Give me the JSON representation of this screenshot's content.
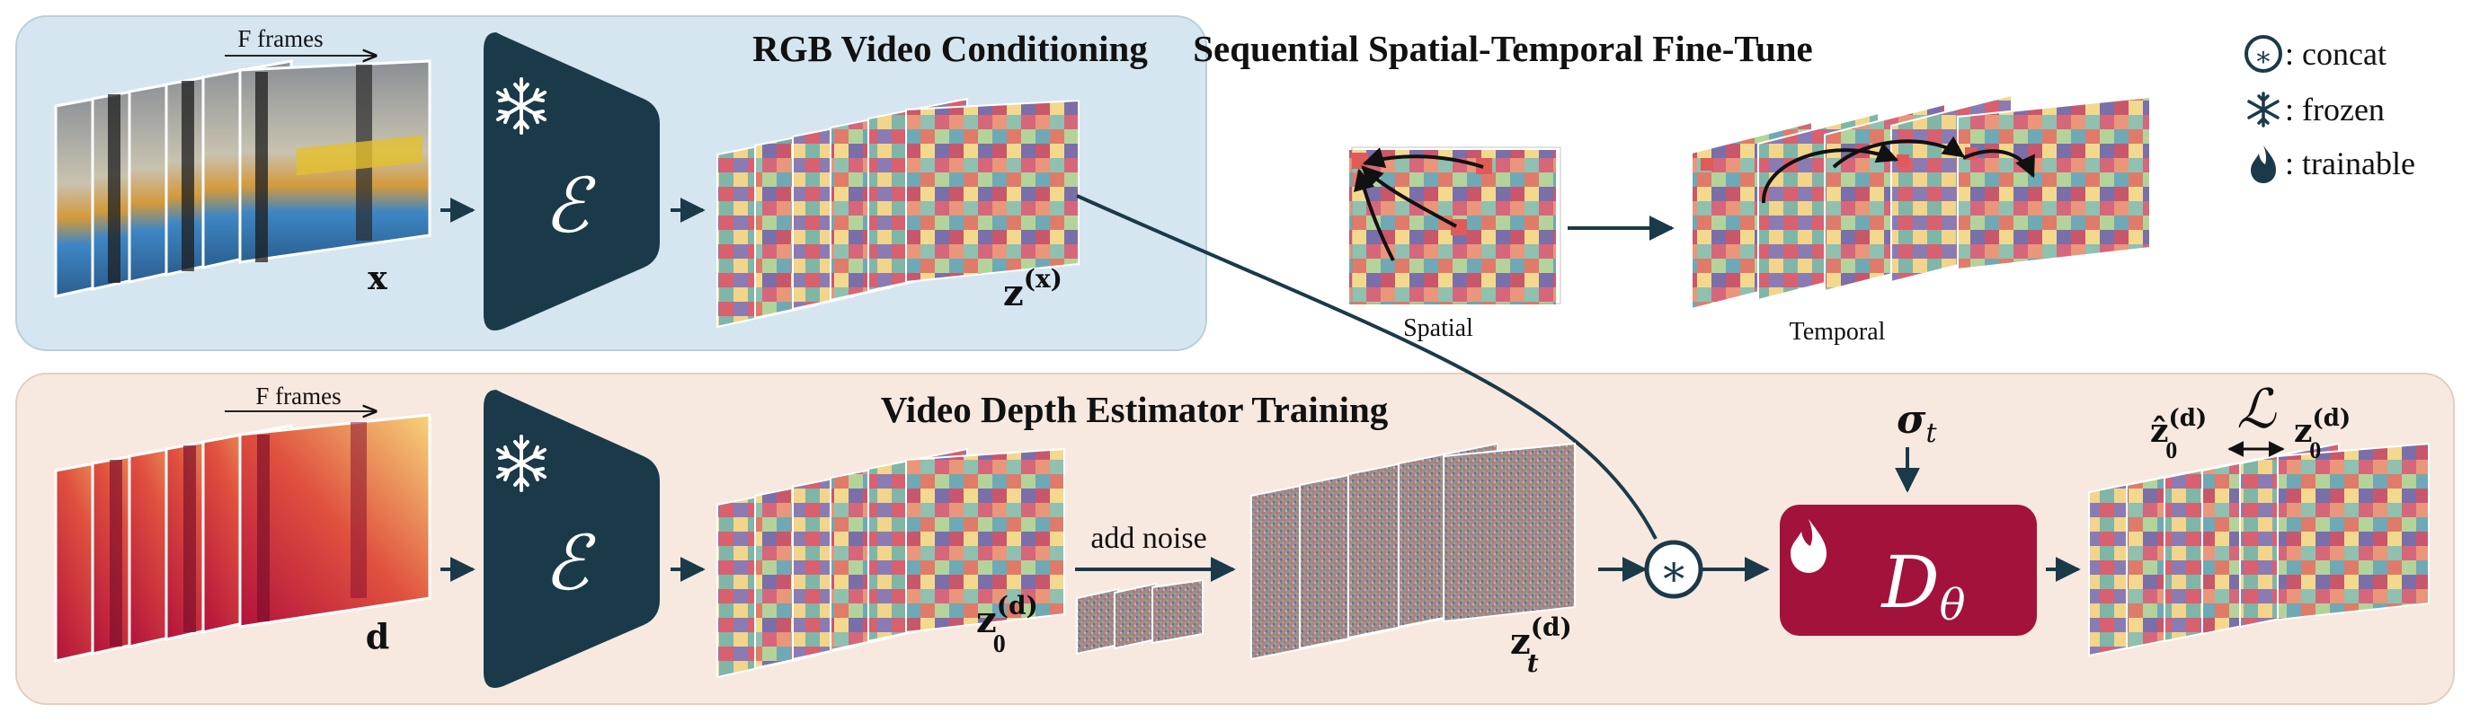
{
  "top_panel": {
    "title": "RGB Video Conditioning",
    "frames_label": "F frames",
    "input_symbol": "x",
    "encoder_symbol": "ℰ",
    "latent_base": "z",
    "latent_sup": "(x)"
  },
  "bottom_panel": {
    "title": "Video Depth Estimator Training",
    "frames_label": "F frames",
    "input_symbol": "d",
    "encoder_symbol": "ℰ",
    "clean_latent_base": "z",
    "clean_latent_sub": "0",
    "clean_latent_sup": "(d)",
    "noise_label": "add noise",
    "noisy_latent_base": "z",
    "noisy_latent_sub": "t",
    "noisy_latent_sup": "(d)",
    "concat_symbol": "∗",
    "sigma_base": "σ",
    "sigma_sub": "t",
    "denoiser_base": "D",
    "denoiser_sub": "θ",
    "loss_symbol": "ℒ",
    "pred_base": "ẑ",
    "pred_sub": "0",
    "pred_sup": "(d)",
    "target_base": "z",
    "target_sub": "0",
    "target_sup": "(d)"
  },
  "finetune": {
    "title": "Sequential Spatial-Temporal Fine-Tune",
    "spatial_label": "Spatial",
    "temporal_label": "Temporal"
  },
  "legend": {
    "concat_symbol": "∗",
    "concat_label": ": concat",
    "frozen_label": ": frozen",
    "trainable_label": ": trainable"
  },
  "colors": {
    "encoder": "#1a3a4a",
    "denoiser": "#a3123a",
    "top_panel_bg": "#d6e6f0",
    "bottom_panel_bg": "#f7e9df",
    "arrow": "#1a3a4a"
  }
}
